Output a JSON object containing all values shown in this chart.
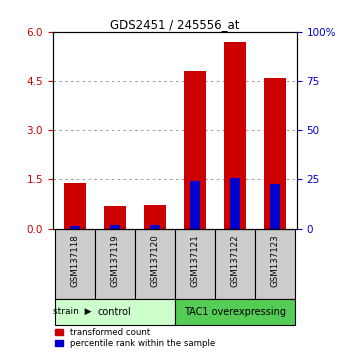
{
  "title": "GDS2451 / 245556_at",
  "samples": [
    "GSM137118",
    "GSM137119",
    "GSM137120",
    "GSM137121",
    "GSM137122",
    "GSM137123"
  ],
  "red_values": [
    1.4,
    0.68,
    0.72,
    4.8,
    5.7,
    4.6
  ],
  "blue_pct": [
    1.5,
    2.0,
    2.0,
    24.0,
    25.5,
    22.5
  ],
  "ylim_left": [
    0,
    6
  ],
  "ylim_right": [
    0,
    100
  ],
  "yticks_left": [
    0,
    1.5,
    3.0,
    4.5,
    6.0
  ],
  "yticks_right": [
    0,
    25,
    50,
    75,
    100
  ],
  "groups": [
    {
      "label": "control",
      "indices": [
        0,
        1,
        2
      ],
      "color": "#ccffcc"
    },
    {
      "label": "TAC1 overexpressing",
      "indices": [
        3,
        4,
        5
      ],
      "color": "#55cc55"
    }
  ],
  "bar_width": 0.55,
  "blue_bar_width": 0.25,
  "red_color": "#cc0000",
  "blue_color": "#0000cc",
  "grid_color": "#888888",
  "sample_bg_color": "#cccccc",
  "legend_red": "transformed count",
  "legend_blue": "percentile rank within the sample",
  "left_tick_color": "#cc0000",
  "right_tick_color": "#0000cc"
}
